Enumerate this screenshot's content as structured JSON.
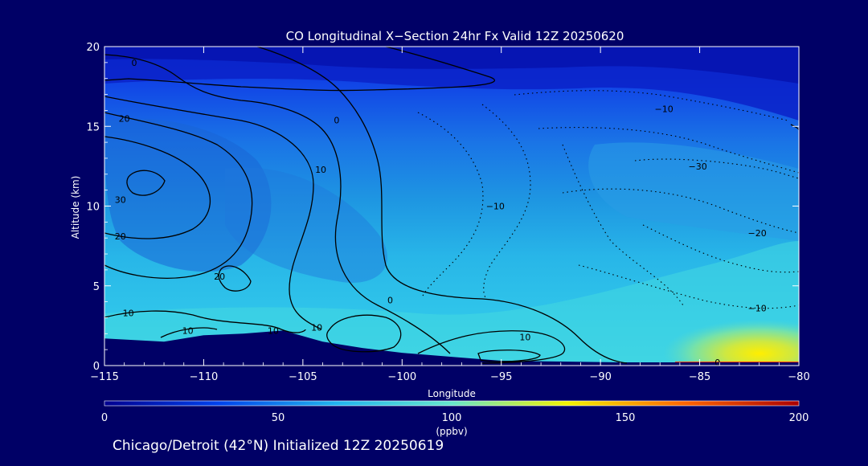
{
  "chart_data": {
    "type": "heatmap",
    "title": "CO Longitudinal X−Section 24hr  Fx Valid 12Z 20250620",
    "xlabel": "Longitude",
    "ylabel": "Altitude (km)",
    "xlim": [
      -115,
      -80
    ],
    "ylim": [
      0,
      20
    ],
    "x_ticks": [
      -115,
      -110,
      -105,
      -100,
      -95,
      -90,
      -85,
      -80
    ],
    "x_tick_labels": [
      "−115",
      "−110",
      "−105",
      "−100",
      "−95",
      "−90",
      "−85",
      "−80"
    ],
    "y_ticks": [
      0,
      5,
      10,
      15,
      20
    ],
    "y_tick_labels": [
      "0",
      "5",
      "10",
      "15",
      "20"
    ],
    "colorbar": {
      "label": "(ppbv)",
      "range": [
        0,
        200
      ],
      "ticks": [
        0,
        50,
        100,
        150,
        200
      ],
      "tick_labels": [
        "0",
        "50",
        "100",
        "150",
        "200"
      ],
      "colormap": [
        "#00008f",
        "#0044ee",
        "#22b4ee",
        "#66e6cc",
        "#f2f200",
        "#ff6600",
        "#aa0000"
      ]
    },
    "filled_field_description": "CO concentration (ppbv)",
    "anomaly_contours": {
      "levels_labeled": [
        "0",
        "10",
        "20",
        "30",
        "−10",
        "−20",
        "−30"
      ],
      "positive_style": "solid",
      "negative_style": "dotted"
    },
    "contour_labels": [
      {
        "text": "0",
        "lon": -113.5,
        "alt": 19.0
      },
      {
        "text": "20",
        "lon": -114.0,
        "alt": 15.5
      },
      {
        "text": "0",
        "lon": -103.3,
        "alt": 15.4
      },
      {
        "text": "10",
        "lon": -104.1,
        "alt": 12.3
      },
      {
        "text": "30",
        "lon": -114.2,
        "alt": 10.4
      },
      {
        "text": "20",
        "lon": -114.2,
        "alt": 8.1
      },
      {
        "text": "20",
        "lon": -109.2,
        "alt": 5.6
      },
      {
        "text": "10",
        "lon": -113.8,
        "alt": 3.3
      },
      {
        "text": "10",
        "lon": -110.8,
        "alt": 2.2
      },
      {
        "text": "10",
        "lon": -106.5,
        "alt": 2.2
      },
      {
        "text": "10",
        "lon": -104.3,
        "alt": 2.4
      },
      {
        "text": "0",
        "lon": -100.6,
        "alt": 4.1
      },
      {
        "text": "10",
        "lon": -93.8,
        "alt": 1.8
      },
      {
        "text": "−10",
        "lon": -95.3,
        "alt": 10.0
      },
      {
        "text": "−10",
        "lon": -86.8,
        "alt": 16.1
      },
      {
        "text": "−30",
        "lon": -85.1,
        "alt": 12.5
      },
      {
        "text": "−20",
        "lon": -82.1,
        "alt": 8.3
      },
      {
        "text": "−10",
        "lon": -82.1,
        "alt": 3.6
      },
      {
        "text": "0",
        "lon": -84.1,
        "alt": 0.2
      }
    ],
    "terrain_profile": [
      {
        "lon": -115,
        "alt": 1.7
      },
      {
        "lon": -112,
        "alt": 1.5
      },
      {
        "lon": -110,
        "alt": 1.9
      },
      {
        "lon": -108,
        "alt": 2.0
      },
      {
        "lon": -106,
        "alt": 2.2
      },
      {
        "lon": -104,
        "alt": 1.5
      },
      {
        "lon": -102,
        "alt": 1.1
      },
      {
        "lon": -100,
        "alt": 0.8
      },
      {
        "lon": -97,
        "alt": 0.5
      },
      {
        "lon": -95,
        "alt": 0.3
      },
      {
        "lon": -92,
        "alt": 0.25
      },
      {
        "lon": -89,
        "alt": 0.2
      },
      {
        "lon": -86,
        "alt": 0.2
      },
      {
        "lon": -80,
        "alt": 0.2
      }
    ],
    "caption": "Chicago/Detroit (42°N) Initialized 12Z 20250619"
  }
}
